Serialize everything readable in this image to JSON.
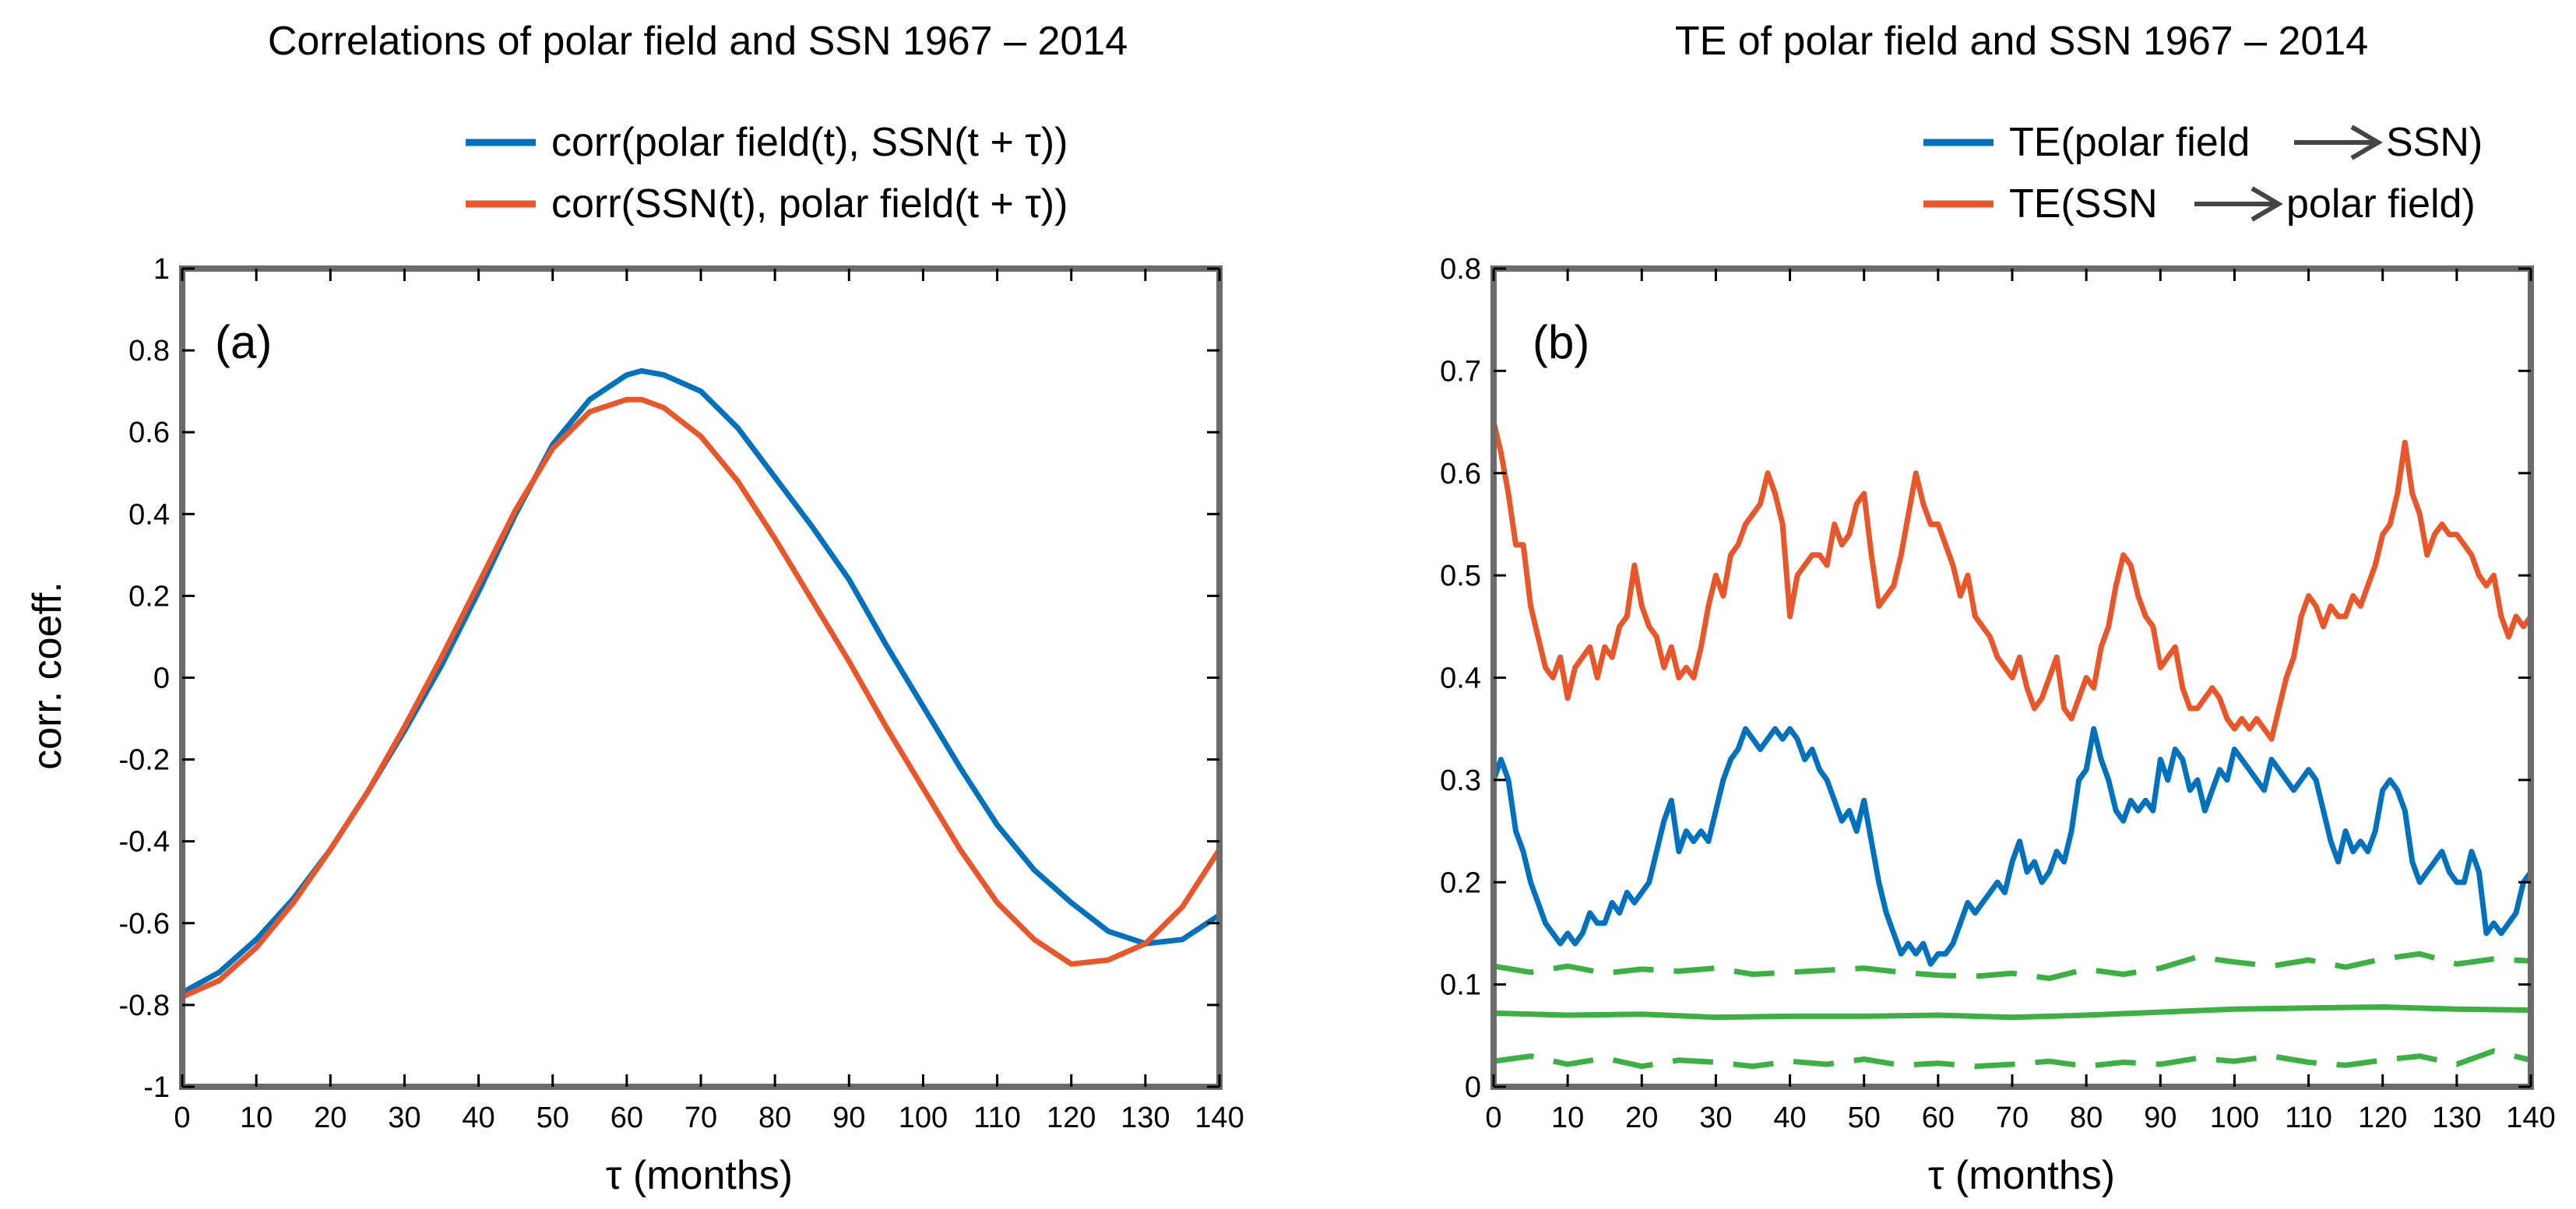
{
  "chart_data": [
    {
      "type": "line",
      "title": "Correlations of polar field and SSN  1967 – 2014",
      "panel_label": "(a)",
      "xlabel": "τ (months)",
      "ylabel": "corr. coeff.",
      "xlim": [
        0,
        140
      ],
      "ylim": [
        -1,
        1
      ],
      "x_ticks": [
        0,
        10,
        20,
        30,
        40,
        50,
        60,
        70,
        80,
        90,
        100,
        110,
        120,
        130,
        140
      ],
      "y_ticks": [
        -1,
        -0.8,
        -0.6,
        -0.4,
        -0.2,
        0,
        0.2,
        0.4,
        0.6,
        0.8,
        1
      ],
      "x_tick_labels": [
        "0",
        "10",
        "20",
        "30",
        "40",
        "50",
        "60",
        "70",
        "80",
        "90",
        "100",
        "110",
        "120",
        "130",
        "140"
      ],
      "y_tick_labels": [
        "-1",
        "-0.8",
        "-0.6",
        "-0.4",
        "-0.2",
        "0",
        "0.2",
        "0.4",
        "0.6",
        "0.8",
        "1"
      ],
      "legend_position": "top-right, outside above axes",
      "grid": false,
      "series": [
        {
          "name": "corr(polar field(t), SSN(t + τ))",
          "color": "#0072bd",
          "x": [
            0,
            5,
            10,
            15,
            20,
            25,
            30,
            35,
            40,
            45,
            50,
            55,
            60,
            62,
            65,
            70,
            75,
            80,
            85,
            90,
            95,
            100,
            105,
            110,
            115,
            120,
            125,
            130,
            135,
            140
          ],
          "y": [
            -0.77,
            -0.72,
            -0.64,
            -0.54,
            -0.42,
            -0.28,
            -0.13,
            0.03,
            0.21,
            0.4,
            0.57,
            0.68,
            0.74,
            0.75,
            0.74,
            0.7,
            0.61,
            0.49,
            0.37,
            0.24,
            0.08,
            -0.07,
            -0.22,
            -0.36,
            -0.47,
            -0.55,
            -0.62,
            -0.65,
            -0.64,
            -0.58
          ]
        },
        {
          "name": "corr(SSN(t), polar field(t + τ))",
          "color": "#e8562a",
          "x": [
            0,
            5,
            10,
            15,
            20,
            25,
            30,
            35,
            40,
            45,
            50,
            55,
            60,
            62,
            65,
            70,
            75,
            80,
            85,
            90,
            95,
            100,
            105,
            110,
            115,
            120,
            125,
            130,
            135,
            140
          ],
          "y": [
            -0.78,
            -0.74,
            -0.66,
            -0.55,
            -0.42,
            -0.28,
            -0.12,
            0.05,
            0.23,
            0.41,
            0.56,
            0.65,
            0.68,
            0.68,
            0.66,
            0.59,
            0.48,
            0.34,
            0.19,
            0.04,
            -0.12,
            -0.27,
            -0.42,
            -0.55,
            -0.64,
            -0.7,
            -0.69,
            -0.65,
            -0.56,
            -0.42
          ]
        }
      ]
    },
    {
      "type": "line",
      "title": "TE of polar field and SSN 1967 – 2014",
      "panel_label": "(b)",
      "xlabel": "τ (months)",
      "ylabel": "",
      "xlim": [
        0,
        140
      ],
      "ylim": [
        0,
        0.8
      ],
      "x_ticks": [
        0,
        10,
        20,
        30,
        40,
        50,
        60,
        70,
        80,
        90,
        100,
        110,
        120,
        130,
        140
      ],
      "y_ticks": [
        0,
        0.1,
        0.2,
        0.3,
        0.4,
        0.5,
        0.6,
        0.7,
        0.8
      ],
      "x_tick_labels": [
        "0",
        "10",
        "20",
        "30",
        "40",
        "50",
        "60",
        "70",
        "80",
        "90",
        "100",
        "110",
        "120",
        "130",
        "140"
      ],
      "y_tick_labels": [
        "0",
        "0.1",
        "0.2",
        "0.3",
        "0.4",
        "0.5",
        "0.6",
        "0.7",
        "0.8"
      ],
      "legend_position": "top-right, outside above axes",
      "grid": false,
      "series": [
        {
          "name": "TE(polar field → SSN)",
          "legend_left": "TE(polar field",
          "legend_right": "SSN)",
          "color": "#0072bd",
          "x": [
            0,
            1,
            2,
            3,
            4,
            5,
            6,
            7,
            8,
            9,
            10,
            11,
            12,
            13,
            14,
            15,
            16,
            17,
            18,
            19,
            20,
            21,
            22,
            23,
            24,
            25,
            26,
            27,
            28,
            29,
            30,
            31,
            32,
            33,
            34,
            35,
            36,
            37,
            38,
            39,
            40,
            41,
            42,
            43,
            44,
            45,
            46,
            47,
            48,
            49,
            50,
            51,
            52,
            53,
            54,
            55,
            56,
            57,
            58,
            59,
            60,
            61,
            62,
            63,
            64,
            65,
            66,
            67,
            68,
            69,
            70,
            71,
            72,
            73,
            74,
            75,
            76,
            77,
            78,
            79,
            80,
            81,
            82,
            83,
            84,
            85,
            86,
            87,
            88,
            89,
            90,
            91,
            92,
            93,
            94,
            95,
            96,
            97,
            98,
            99,
            100,
            101,
            102,
            103,
            104,
            105,
            106,
            107,
            108,
            109,
            110,
            111,
            112,
            113,
            114,
            115,
            116,
            117,
            118,
            119,
            120,
            121,
            122,
            123,
            124,
            125,
            126,
            127,
            128,
            129,
            130,
            131,
            132,
            133,
            134,
            135,
            136,
            137,
            138,
            139,
            140
          ],
          "y": [
            0.3,
            0.32,
            0.3,
            0.25,
            0.23,
            0.2,
            0.18,
            0.16,
            0.15,
            0.14,
            0.15,
            0.14,
            0.15,
            0.17,
            0.16,
            0.16,
            0.18,
            0.17,
            0.19,
            0.18,
            0.19,
            0.2,
            0.23,
            0.26,
            0.28,
            0.23,
            0.25,
            0.24,
            0.25,
            0.24,
            0.27,
            0.3,
            0.32,
            0.33,
            0.35,
            0.34,
            0.33,
            0.34,
            0.35,
            0.34,
            0.35,
            0.34,
            0.32,
            0.33,
            0.31,
            0.3,
            0.28,
            0.26,
            0.27,
            0.25,
            0.28,
            0.24,
            0.2,
            0.17,
            0.15,
            0.13,
            0.14,
            0.13,
            0.14,
            0.12,
            0.13,
            0.13,
            0.14,
            0.16,
            0.18,
            0.17,
            0.18,
            0.19,
            0.2,
            0.19,
            0.22,
            0.24,
            0.21,
            0.22,
            0.2,
            0.21,
            0.23,
            0.22,
            0.25,
            0.3,
            0.31,
            0.35,
            0.32,
            0.3,
            0.27,
            0.26,
            0.28,
            0.27,
            0.28,
            0.27,
            0.32,
            0.3,
            0.33,
            0.32,
            0.29,
            0.3,
            0.27,
            0.29,
            0.31,
            0.3,
            0.33,
            0.32,
            0.31,
            0.3,
            0.29,
            0.32,
            0.31,
            0.3,
            0.29,
            0.3,
            0.31,
            0.3,
            0.27,
            0.24,
            0.22,
            0.25,
            0.23,
            0.24,
            0.23,
            0.25,
            0.29,
            0.3,
            0.29,
            0.27,
            0.22,
            0.2,
            0.21,
            0.22,
            0.23,
            0.21,
            0.2,
            0.2,
            0.23,
            0.21,
            0.15,
            0.16,
            0.15,
            0.16,
            0.17,
            0.2,
            0.21
          ]
        },
        {
          "name": "TE(SSN → polar field)",
          "legend_left": "TE(SSN",
          "legend_right": "polar field)",
          "color": "#e8562a",
          "x": [
            0,
            1,
            2,
            3,
            4,
            5,
            6,
            7,
            8,
            9,
            10,
            11,
            12,
            13,
            14,
            15,
            16,
            17,
            18,
            19,
            20,
            21,
            22,
            23,
            24,
            25,
            26,
            27,
            28,
            29,
            30,
            31,
            32,
            33,
            34,
            35,
            36,
            37,
            38,
            39,
            40,
            41,
            42,
            43,
            44,
            45,
            46,
            47,
            48,
            49,
            50,
            51,
            52,
            53,
            54,
            55,
            56,
            57,
            58,
            59,
            60,
            61,
            62,
            63,
            64,
            65,
            66,
            67,
            68,
            69,
            70,
            71,
            72,
            73,
            74,
            75,
            76,
            77,
            78,
            79,
            80,
            81,
            82,
            83,
            84,
            85,
            86,
            87,
            88,
            89,
            90,
            91,
            92,
            93,
            94,
            95,
            96,
            97,
            98,
            99,
            100,
            101,
            102,
            103,
            104,
            105,
            106,
            107,
            108,
            109,
            110,
            111,
            112,
            113,
            114,
            115,
            116,
            117,
            118,
            119,
            120,
            121,
            122,
            123,
            124,
            125,
            126,
            127,
            128,
            129,
            130,
            131,
            132,
            133,
            134,
            135,
            136,
            137,
            138,
            139,
            140
          ],
          "y": [
            0.65,
            0.62,
            0.58,
            0.53,
            0.53,
            0.47,
            0.44,
            0.41,
            0.4,
            0.42,
            0.38,
            0.41,
            0.42,
            0.43,
            0.4,
            0.43,
            0.42,
            0.45,
            0.46,
            0.51,
            0.47,
            0.45,
            0.44,
            0.41,
            0.43,
            0.4,
            0.41,
            0.4,
            0.43,
            0.47,
            0.5,
            0.48,
            0.52,
            0.53,
            0.55,
            0.56,
            0.57,
            0.6,
            0.58,
            0.55,
            0.46,
            0.5,
            0.51,
            0.52,
            0.52,
            0.51,
            0.55,
            0.53,
            0.54,
            0.57,
            0.58,
            0.52,
            0.47,
            0.48,
            0.49,
            0.52,
            0.56,
            0.6,
            0.57,
            0.55,
            0.55,
            0.53,
            0.51,
            0.48,
            0.5,
            0.46,
            0.45,
            0.44,
            0.42,
            0.41,
            0.4,
            0.42,
            0.39,
            0.37,
            0.38,
            0.4,
            0.42,
            0.37,
            0.36,
            0.38,
            0.4,
            0.39,
            0.43,
            0.45,
            0.49,
            0.52,
            0.51,
            0.48,
            0.46,
            0.45,
            0.41,
            0.42,
            0.43,
            0.39,
            0.37,
            0.37,
            0.38,
            0.39,
            0.38,
            0.36,
            0.35,
            0.36,
            0.35,
            0.36,
            0.35,
            0.34,
            0.37,
            0.4,
            0.42,
            0.46,
            0.48,
            0.47,
            0.45,
            0.47,
            0.46,
            0.46,
            0.48,
            0.47,
            0.49,
            0.51,
            0.54,
            0.55,
            0.58,
            0.63,
            0.58,
            0.56,
            0.52,
            0.54,
            0.55,
            0.54,
            0.54,
            0.53,
            0.52,
            0.5,
            0.49,
            0.5,
            0.46,
            0.44,
            0.46,
            0.45,
            0.46
          ]
        },
        {
          "color": "#3cb043",
          "style": "solid",
          "x": [
            0,
            10,
            20,
            30,
            40,
            50,
            60,
            70,
            80,
            90,
            100,
            110,
            120,
            130,
            140
          ],
          "y": [
            0.072,
            0.07,
            0.071,
            0.068,
            0.069,
            0.069,
            0.07,
            0.068,
            0.07,
            0.073,
            0.076,
            0.077,
            0.078,
            0.076,
            0.075
          ]
        },
        {
          "color": "#3cb043",
          "style": "dashed",
          "x": [
            0,
            5,
            10,
            15,
            20,
            25,
            30,
            35,
            40,
            45,
            50,
            55,
            60,
            65,
            70,
            75,
            80,
            85,
            90,
            95,
            100,
            105,
            110,
            115,
            120,
            125,
            130,
            135,
            140
          ],
          "y": [
            0.118,
            0.112,
            0.118,
            0.111,
            0.115,
            0.113,
            0.116,
            0.11,
            0.112,
            0.114,
            0.116,
            0.112,
            0.109,
            0.108,
            0.111,
            0.106,
            0.115,
            0.11,
            0.116,
            0.127,
            0.122,
            0.118,
            0.124,
            0.117,
            0.125,
            0.13,
            0.12,
            0.125,
            0.123
          ]
        },
        {
          "color": "#3cb043",
          "style": "dashed",
          "x": [
            0,
            5,
            10,
            15,
            20,
            25,
            30,
            35,
            40,
            45,
            50,
            55,
            60,
            65,
            70,
            75,
            80,
            85,
            90,
            95,
            100,
            105,
            110,
            115,
            120,
            125,
            130,
            135,
            140
          ],
          "y": [
            0.025,
            0.03,
            0.022,
            0.028,
            0.02,
            0.026,
            0.024,
            0.02,
            0.025,
            0.022,
            0.027,
            0.021,
            0.023,
            0.02,
            0.022,
            0.025,
            0.02,
            0.024,
            0.022,
            0.028,
            0.025,
            0.03,
            0.024,
            0.021,
            0.026,
            0.03,
            0.022,
            0.035,
            0.026
          ]
        }
      ]
    }
  ]
}
